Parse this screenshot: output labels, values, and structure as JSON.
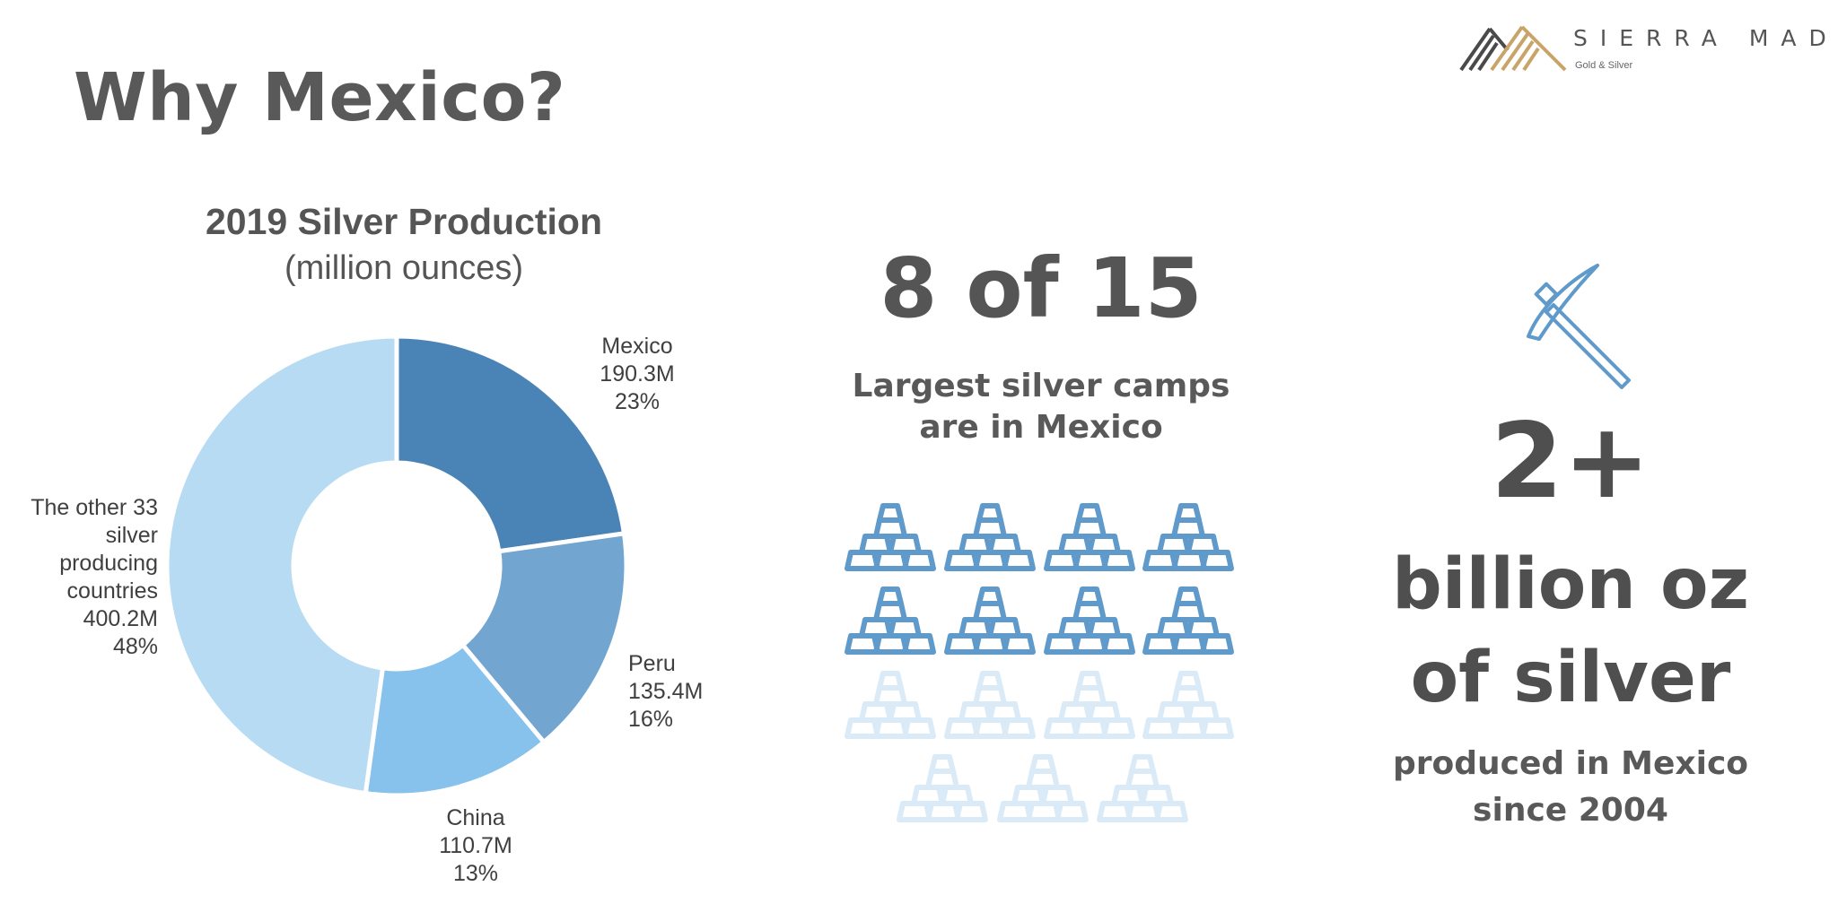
{
  "page": {
    "title": "Why Mexico?"
  },
  "logo": {
    "name": "SIERRA MADRE",
    "tagline": "Gold & Silver",
    "colors": {
      "dark": "#4a4a4a",
      "gold": "#c9a46a"
    }
  },
  "chart_data": {
    "type": "donut",
    "title": "2019 Silver Production",
    "subtitle": "(million ounces)",
    "slices": [
      {
        "name": "Mexico",
        "value": 190.3,
        "value_label": "190.3M",
        "percent_label": "23%",
        "color": "#4a83b6"
      },
      {
        "name": "Peru",
        "value": 135.4,
        "value_label": "135.4M",
        "percent_label": "16%",
        "color": "#72a5d0"
      },
      {
        "name": "China",
        "value": 110.7,
        "value_label": "110.7M",
        "percent_label": "13%",
        "color": "#86c2eb"
      },
      {
        "name_lines": [
          "The other 33",
          "silver",
          "producing",
          "countries"
        ],
        "value": 400.2,
        "value_label": "400.2M",
        "percent_label": "48%",
        "color": "#b6dbf3"
      }
    ]
  },
  "camps": {
    "headline": "8 of 15",
    "line1": "Largest silver camps",
    "line2": "are in Mexico",
    "total": 15,
    "highlighted": 8,
    "colors": {
      "highlighted": "#5f9acb",
      "other": "#dbeaf7"
    },
    "icon": "silver-bar-stack-icon"
  },
  "production": {
    "icon": "pickaxe-icon",
    "icon_color": "#5f9acb",
    "big": "2+",
    "line1": "billion oz",
    "line2": "of silver",
    "small1": "produced in Mexico",
    "small2": "since 2004"
  }
}
